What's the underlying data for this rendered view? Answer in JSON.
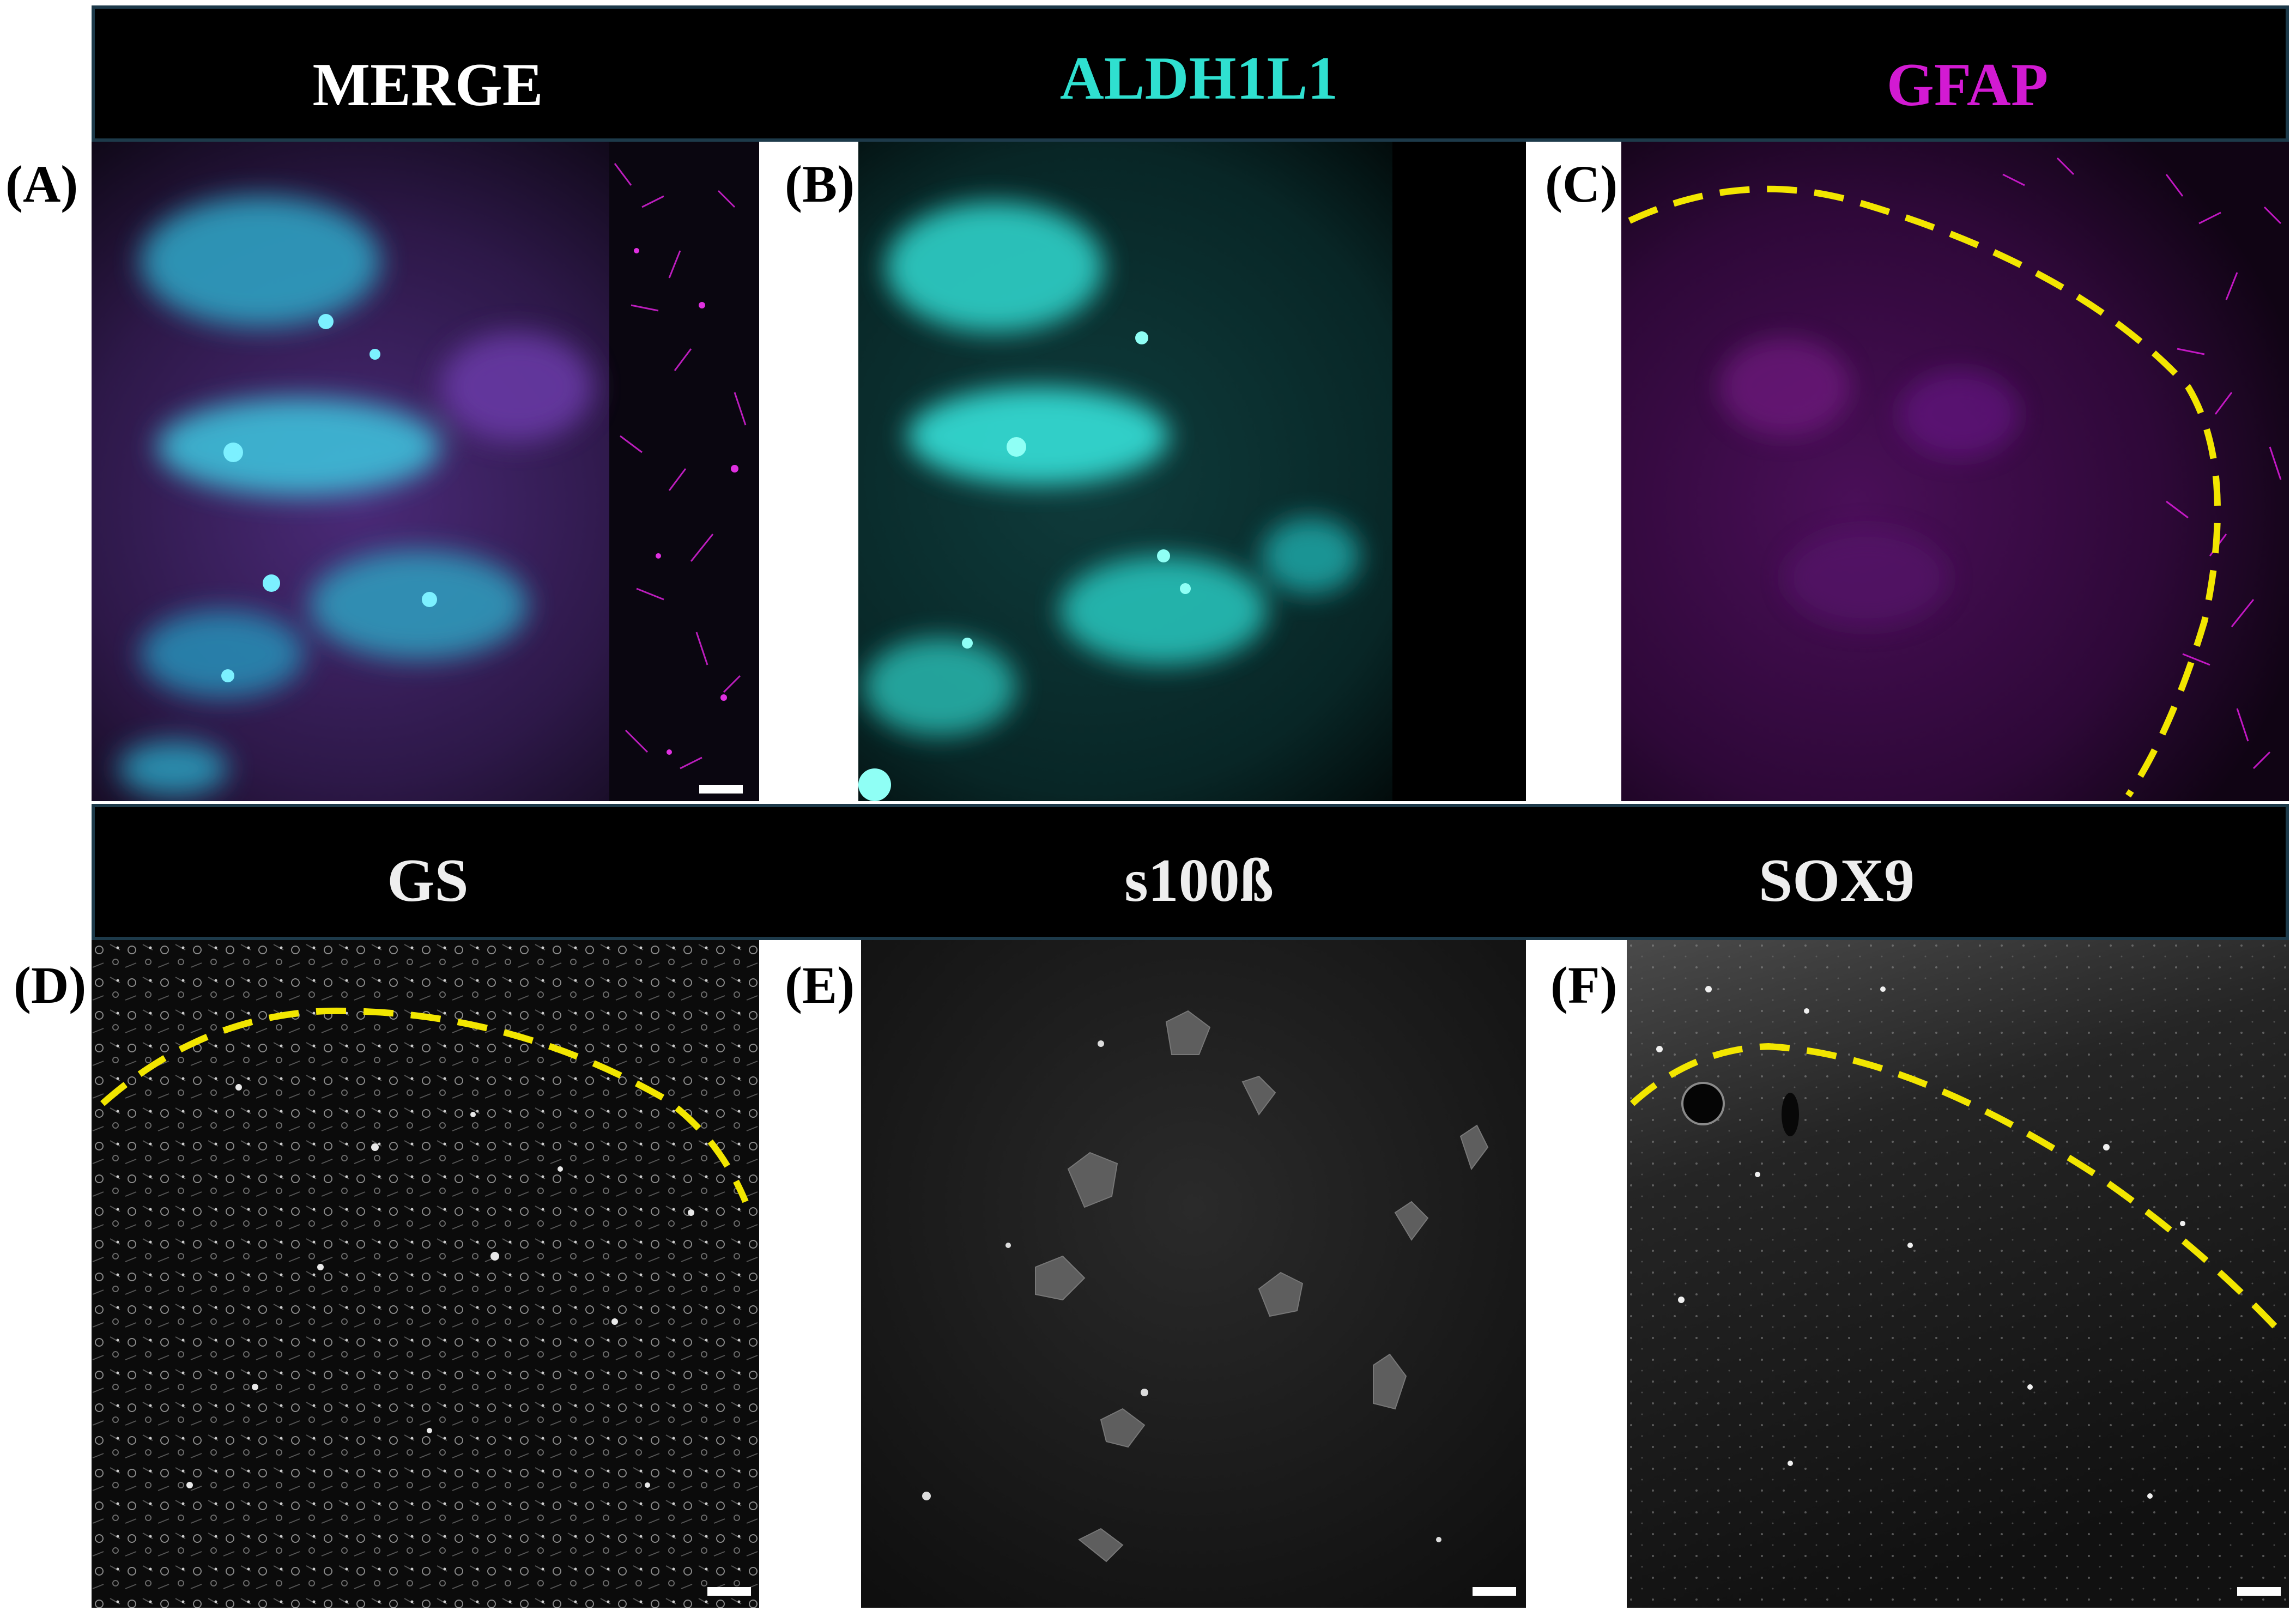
{
  "colors": {
    "merge_title": "#ffffff",
    "aldh1l1": "#2fe0d0",
    "gfap": "#d21ad2",
    "gray_title": "#eeeeee",
    "boundary": "#f2e600"
  },
  "top_row": {
    "titles": [
      "MERGE",
      "ALDH1L1",
      "GFAP"
    ],
    "panels": [
      {
        "label": "(A)",
        "stain": "merge",
        "boundary": false,
        "scale_bar": true
      },
      {
        "label": "(B)",
        "stain": "aldh1l1",
        "boundary": false,
        "scale_bar": false
      },
      {
        "label": "(C)",
        "stain": "gfap",
        "boundary": true,
        "scale_bar": false
      }
    ]
  },
  "bottom_row": {
    "titles": [
      "GS",
      "s100ß",
      "SOX9"
    ],
    "panels": [
      {
        "label": "(D)",
        "stain": "gs",
        "boundary": true,
        "scale_bar": true
      },
      {
        "label": "(E)",
        "stain": "s100b",
        "boundary": false,
        "scale_bar": true
      },
      {
        "label": "(F)",
        "stain": "sox9",
        "boundary": true,
        "scale_bar": true
      }
    ]
  }
}
